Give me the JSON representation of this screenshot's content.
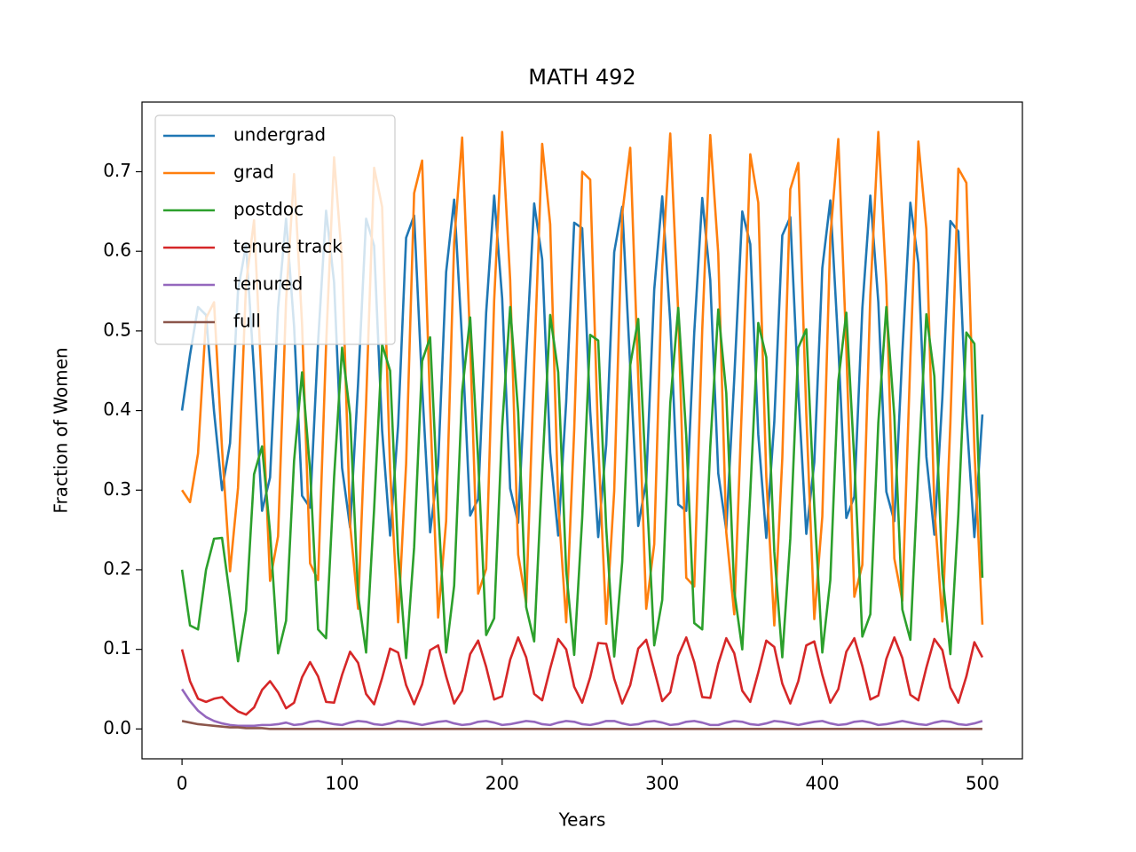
{
  "chart_data": {
    "type": "line",
    "title": "MATH 492",
    "x_label": "Years",
    "y_label": "Fraction of Women",
    "x": [
      0,
      5,
      10,
      15,
      20,
      25,
      30,
      35,
      40,
      45,
      50,
      55,
      60,
      65,
      70,
      75,
      80,
      85,
      90,
      95,
      100,
      105,
      110,
      115,
      120,
      125,
      130,
      135,
      140,
      145,
      150,
      155,
      160,
      165,
      170,
      175,
      180,
      185,
      190,
      195,
      200,
      205,
      210,
      215,
      220,
      225,
      230,
      235,
      240,
      245,
      250,
      255,
      260,
      265,
      270,
      275,
      280,
      285,
      290,
      295,
      300,
      305,
      310,
      315,
      320,
      325,
      330,
      335,
      340,
      345,
      350,
      355,
      360,
      365,
      370,
      375,
      380,
      385,
      390,
      395,
      400,
      405,
      410,
      415,
      420,
      425,
      430,
      435,
      440,
      445,
      450,
      455,
      460,
      465,
      470,
      475,
      480,
      485,
      490,
      495,
      500
    ],
    "series": [
      {
        "name": "undergrad",
        "color": "#1f77b4",
        "values": [
          0.4,
          0.47,
          0.53,
          0.52,
          0.399,
          0.3,
          0.359,
          0.551,
          0.608,
          0.449,
          0.274,
          0.316,
          0.529,
          0.641,
          0.506,
          0.293,
          0.278,
          0.486,
          0.651,
          0.561,
          0.328,
          0.253,
          0.434,
          0.641,
          0.607,
          0.375,
          0.243,
          0.381,
          0.617,
          0.645,
          0.43,
          0.247,
          0.331,
          0.574,
          0.665,
          0.487,
          0.268,
          0.289,
          0.523,
          0.67,
          0.541,
          0.302,
          0.259,
          0.467,
          0.66,
          0.59,
          0.347,
          0.243,
          0.411,
          0.636,
          0.629,
          0.399,
          0.241,
          0.357,
          0.599,
          0.656,
          0.455,
          0.255,
          0.311,
          0.552,
          0.669,
          0.512,
          0.282,
          0.274,
          0.498,
          0.667,
          0.564,
          0.321,
          0.25,
          0.441,
          0.65,
          0.609,
          0.37,
          0.24,
          0.386,
          0.62,
          0.643,
          0.424,
          0.245,
          0.335,
          0.579,
          0.664,
          0.481,
          0.265,
          0.292,
          0.528,
          0.67,
          0.536,
          0.298,
          0.261,
          0.473,
          0.661,
          0.585,
          0.342,
          0.244,
          0.416,
          0.638,
          0.625,
          0.394,
          0.241,
          0.395
        ]
      },
      {
        "name": "grad",
        "color": "#ff7f0e",
        "values": [
          0.3,
          0.285,
          0.346,
          0.516,
          0.536,
          0.352,
          0.198,
          0.303,
          0.559,
          0.639,
          0.424,
          0.186,
          0.242,
          0.538,
          0.697,
          0.508,
          0.208,
          0.187,
          0.482,
          0.718,
          0.588,
          0.257,
          0.151,
          0.409,
          0.705,
          0.656,
          0.325,
          0.134,
          0.333,
          0.673,
          0.714,
          0.404,
          0.14,
          0.261,
          0.611,
          0.743,
          0.486,
          0.17,
          0.201,
          0.538,
          0.75,
          0.564,
          0.219,
          0.158,
          0.458,
          0.735,
          0.634,
          0.284,
          0.134,
          0.376,
          0.7,
          0.69,
          0.36,
          0.132,
          0.299,
          0.647,
          0.73,
          0.441,
          0.151,
          0.232,
          0.58,
          0.748,
          0.522,
          0.19,
          0.179,
          0.502,
          0.746,
          0.597,
          0.247,
          0.144,
          0.42,
          0.722,
          0.661,
          0.317,
          0.13,
          0.34,
          0.678,
          0.711,
          0.396,
          0.138,
          0.267,
          0.618,
          0.741,
          0.478,
          0.166,
          0.206,
          0.545,
          0.75,
          0.557,
          0.214,
          0.161,
          0.465,
          0.738,
          0.628,
          0.278,
          0.135,
          0.384,
          0.704,
          0.686,
          0.352,
          0.131
        ]
      },
      {
        "name": "postdoc",
        "color": "#2ca02c",
        "values": [
          0.2,
          0.13,
          0.125,
          0.2,
          0.239,
          0.24,
          0.165,
          0.085,
          0.149,
          0.32,
          0.355,
          0.247,
          0.095,
          0.136,
          0.337,
          0.448,
          0.325,
          0.125,
          0.114,
          0.316,
          0.479,
          0.395,
          0.168,
          0.096,
          0.276,
          0.483,
          0.45,
          0.22,
          0.089,
          0.228,
          0.462,
          0.492,
          0.278,
          0.096,
          0.18,
          0.424,
          0.517,
          0.338,
          0.118,
          0.139,
          0.38,
          0.53,
          0.398,
          0.153,
          0.11,
          0.323,
          0.52,
          0.448,
          0.199,
          0.093,
          0.265,
          0.495,
          0.488,
          0.253,
          0.091,
          0.21,
          0.457,
          0.515,
          0.31,
          0.105,
          0.162,
          0.409,
          0.529,
          0.368,
          0.133,
          0.125,
          0.354,
          0.527,
          0.422,
          0.173,
          0.1,
          0.296,
          0.51,
          0.467,
          0.223,
          0.09,
          0.239,
          0.479,
          0.502,
          0.279,
          0.096,
          0.187,
          0.437,
          0.523,
          0.337,
          0.116,
          0.144,
          0.385,
          0.53,
          0.393,
          0.15,
          0.112,
          0.328,
          0.521,
          0.443,
          0.195,
          0.094,
          0.27,
          0.498,
          0.484,
          0.19
        ]
      },
      {
        "name": "tenure track",
        "color": "#d62728",
        "values": [
          0.1,
          0.06,
          0.038,
          0.034,
          0.038,
          0.04,
          0.03,
          0.022,
          0.018,
          0.027,
          0.049,
          0.06,
          0.046,
          0.026,
          0.033,
          0.065,
          0.084,
          0.066,
          0.034,
          0.033,
          0.068,
          0.097,
          0.083,
          0.044,
          0.031,
          0.064,
          0.101,
          0.096,
          0.055,
          0.031,
          0.056,
          0.099,
          0.105,
          0.066,
          0.032,
          0.048,
          0.094,
          0.111,
          0.078,
          0.037,
          0.041,
          0.087,
          0.115,
          0.09,
          0.044,
          0.036,
          0.076,
          0.113,
          0.1,
          0.053,
          0.033,
          0.065,
          0.108,
          0.107,
          0.063,
          0.032,
          0.055,
          0.101,
          0.112,
          0.074,
          0.035,
          0.046,
          0.092,
          0.115,
          0.084,
          0.04,
          0.039,
          0.082,
          0.114,
          0.095,
          0.048,
          0.034,
          0.071,
          0.111,
          0.103,
          0.057,
          0.032,
          0.06,
          0.105,
          0.11,
          0.068,
          0.033,
          0.05,
          0.097,
          0.114,
          0.079,
          0.037,
          0.042,
          0.088,
          0.115,
          0.089,
          0.043,
          0.036,
          0.077,
          0.113,
          0.099,
          0.052,
          0.033,
          0.066,
          0.109,
          0.09
        ]
      },
      {
        "name": "tenured",
        "color": "#9467bd",
        "values": [
          0.05,
          0.035,
          0.023,
          0.015,
          0.01,
          0.007,
          0.005,
          0.004,
          0.004,
          0.004,
          0.005,
          0.005,
          0.006,
          0.008,
          0.005,
          0.006,
          0.009,
          0.01,
          0.008,
          0.006,
          0.005,
          0.008,
          0.01,
          0.009,
          0.006,
          0.005,
          0.007,
          0.01,
          0.009,
          0.007,
          0.005,
          0.007,
          0.009,
          0.01,
          0.007,
          0.005,
          0.006,
          0.009,
          0.01,
          0.008,
          0.005,
          0.006,
          0.008,
          0.01,
          0.009,
          0.006,
          0.005,
          0.008,
          0.01,
          0.009,
          0.006,
          0.005,
          0.007,
          0.01,
          0.01,
          0.007,
          0.005,
          0.006,
          0.009,
          0.01,
          0.008,
          0.005,
          0.006,
          0.009,
          0.01,
          0.008,
          0.005,
          0.005,
          0.008,
          0.01,
          0.009,
          0.006,
          0.005,
          0.007,
          0.01,
          0.009,
          0.007,
          0.005,
          0.007,
          0.009,
          0.01,
          0.007,
          0.005,
          0.006,
          0.009,
          0.01,
          0.008,
          0.005,
          0.006,
          0.008,
          0.01,
          0.008,
          0.006,
          0.005,
          0.008,
          0.01,
          0.009,
          0.006,
          0.005,
          0.007,
          0.01
        ]
      },
      {
        "name": "full",
        "color": "#8c564b",
        "values": [
          0.01,
          0.008,
          0.006,
          0.005,
          0.004,
          0.003,
          0.002,
          0.002,
          0.001,
          0.001,
          0.001,
          0,
          0,
          0,
          0,
          0,
          0,
          0,
          0,
          0,
          0,
          0,
          0,
          0,
          0,
          0,
          0,
          0,
          0,
          0,
          0,
          0,
          0,
          0,
          0,
          0,
          0,
          0,
          0,
          0,
          0,
          0,
          0,
          0,
          0,
          0,
          0,
          0,
          0,
          0,
          0,
          0,
          0,
          0,
          0,
          0,
          0,
          0,
          0,
          0,
          0,
          0,
          0,
          0,
          0,
          0,
          0,
          0,
          0,
          0,
          0,
          0,
          0,
          0,
          0,
          0,
          0,
          0,
          0,
          0,
          0,
          0,
          0,
          0,
          0,
          0,
          0,
          0,
          0,
          0,
          0,
          0,
          0,
          0,
          0,
          0,
          0,
          0,
          0,
          0,
          0
        ]
      }
    ],
    "xlim": [
      -25,
      525
    ],
    "xticks": [
      0,
      100,
      200,
      300,
      400,
      500
    ],
    "ylim": [
      -0.0375,
      0.7875
    ],
    "yticks": [
      {
        "value": 0,
        "label": "0.0"
      },
      0.1,
      0.2,
      0.3,
      0.4,
      0.5,
      0.6,
      0.7
    ],
    "grid": false,
    "legend": "upper left"
  }
}
